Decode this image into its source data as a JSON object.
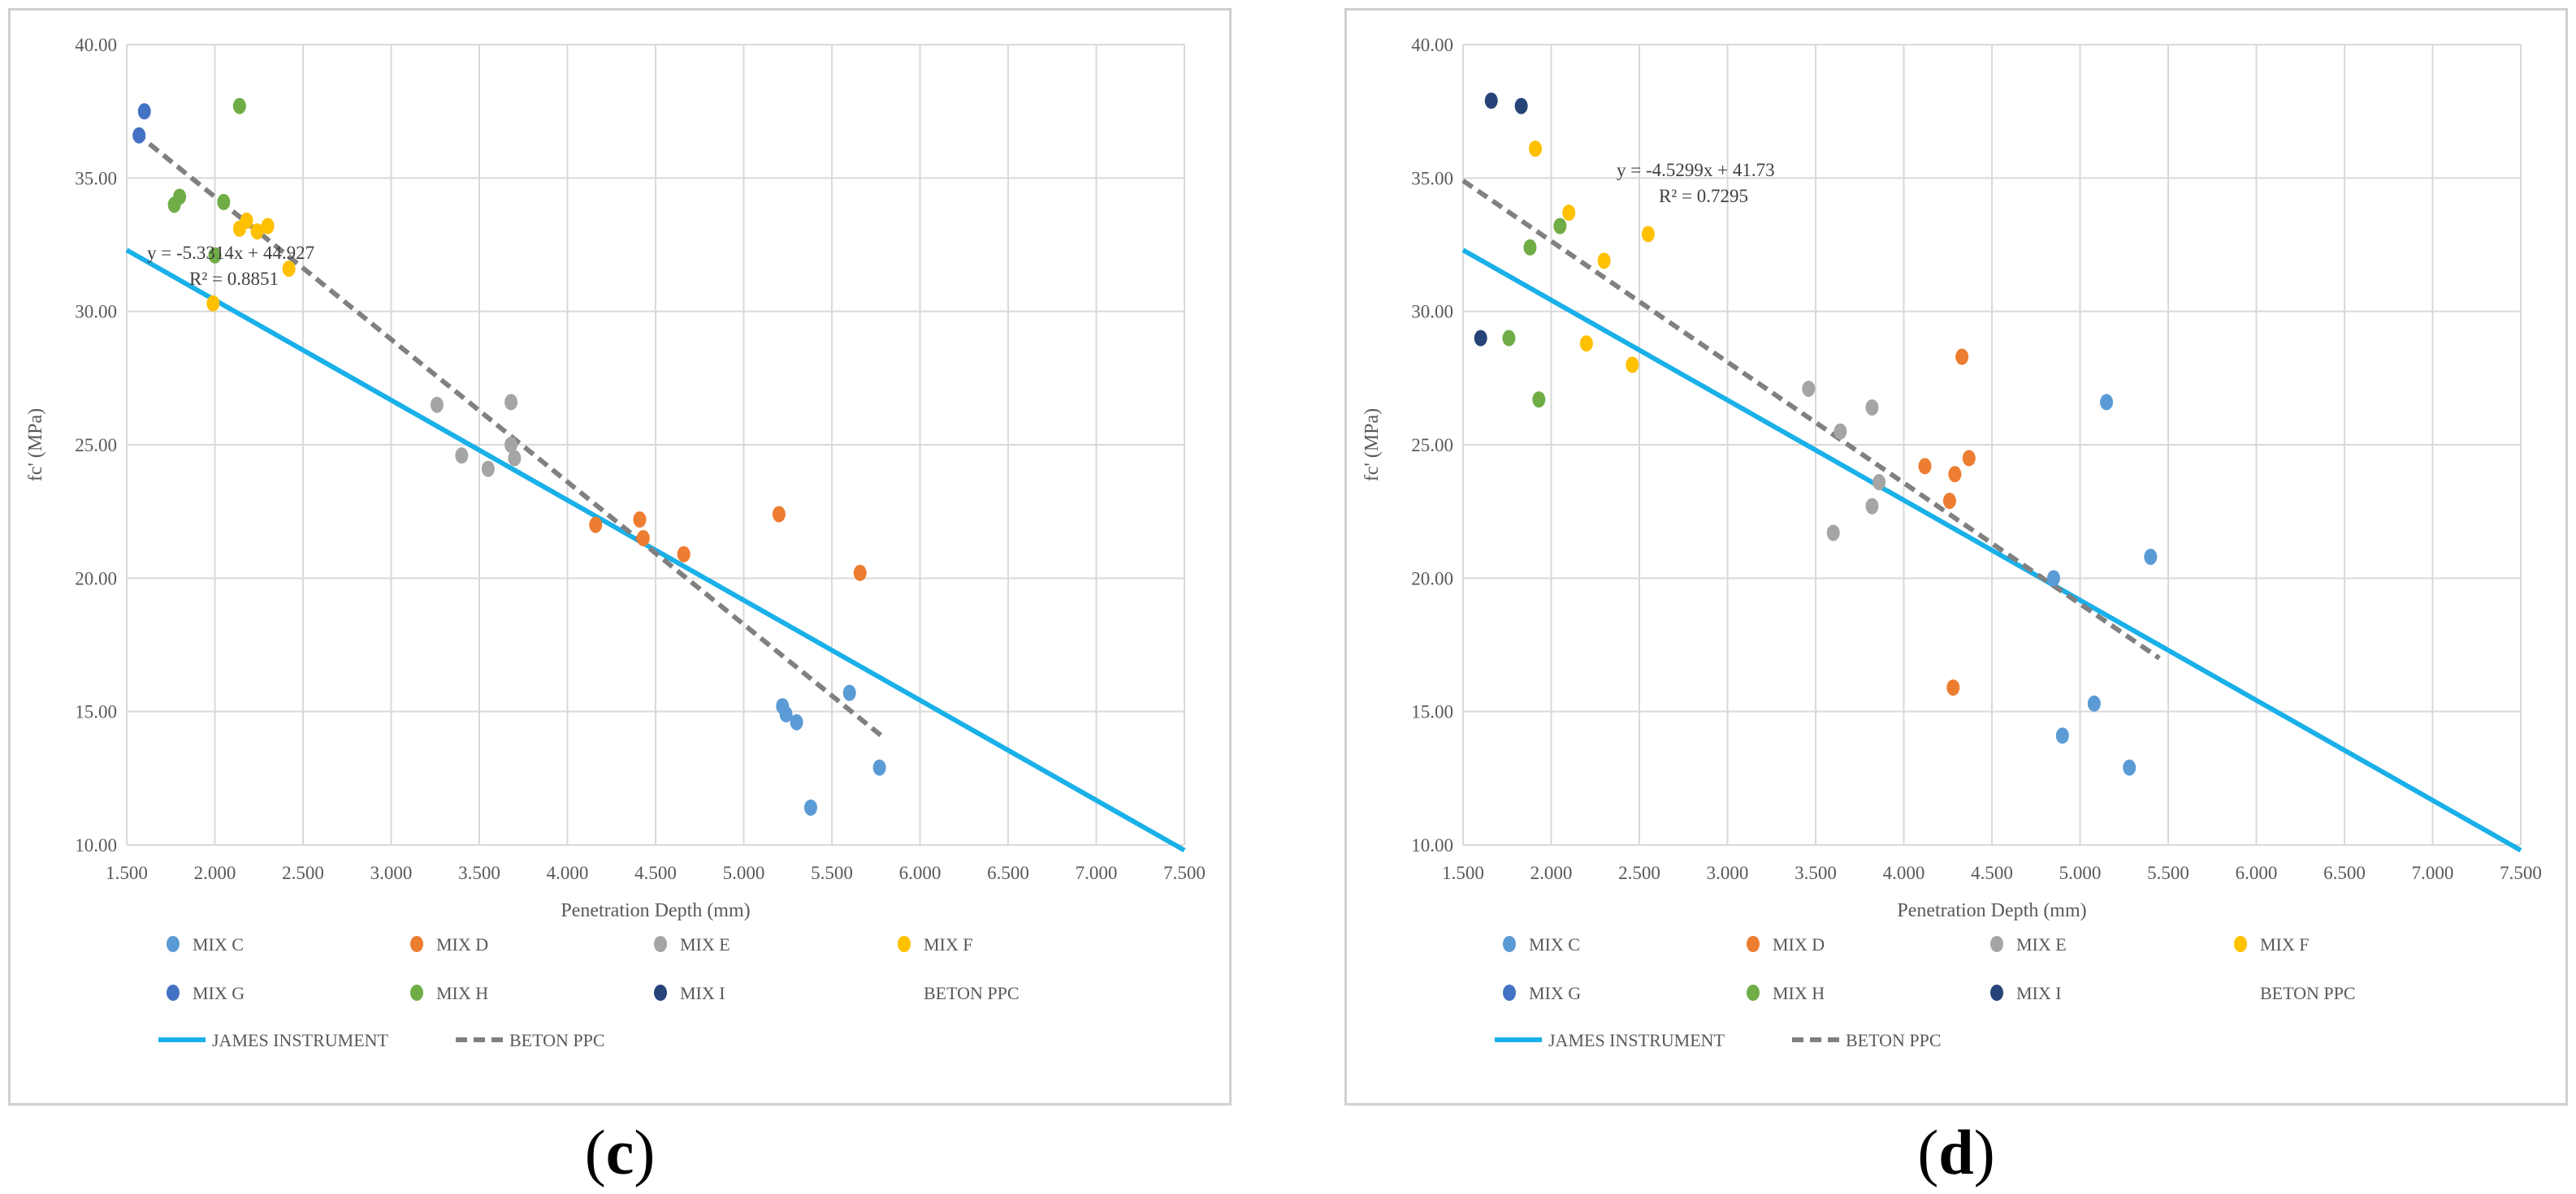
{
  "chart_data": [
    {
      "type": "scatter",
      "panel": "c",
      "caption_letter": "c",
      "xlabel": "Penetration Depth (mm)",
      "ylabel": "fc' (MPa)",
      "xlim": [
        1.5,
        7.5
      ],
      "ylim": [
        10,
        40
      ],
      "x_ticks": [
        "1.500",
        "2.000",
        "2.500",
        "3.000",
        "3.500",
        "4.000",
        "4.500",
        "5.000",
        "5.500",
        "6.000",
        "6.500",
        "7.000",
        "7.500"
      ],
      "y_ticks": [
        "10.00",
        "15.00",
        "20.00",
        "25.00",
        "30.00",
        "35.00",
        "40.00"
      ],
      "grid": true,
      "legend_position": "bottom",
      "equation": "y = -5.3314x + 44.927",
      "r_squared": "R² = 0.8851",
      "series": [
        {
          "name": "MIX C",
          "color": "#5b9bd5",
          "points": [
            [
              5.22,
              15.2
            ],
            [
              5.24,
              14.9
            ],
            [
              5.3,
              14.6
            ],
            [
              5.6,
              15.7
            ],
            [
              5.38,
              11.4
            ],
            [
              5.77,
              12.9
            ]
          ]
        },
        {
          "name": "MIX D",
          "color": "#ed7d31",
          "points": [
            [
              4.16,
              22.0
            ],
            [
              4.41,
              22.2
            ],
            [
              4.43,
              21.5
            ],
            [
              4.66,
              20.9
            ],
            [
              5.2,
              22.4
            ],
            [
              5.66,
              20.2
            ]
          ]
        },
        {
          "name": "MIX E",
          "color": "#a5a5a5",
          "points": [
            [
              3.26,
              26.5
            ],
            [
              3.4,
              24.6
            ],
            [
              3.55,
              24.1
            ],
            [
              3.68,
              26.6
            ],
            [
              3.68,
              25.0
            ],
            [
              3.7,
              24.5
            ]
          ]
        },
        {
          "name": "MIX F",
          "color": "#ffc000",
          "points": [
            [
              1.99,
              30.3
            ],
            [
              2.14,
              33.1
            ],
            [
              2.18,
              33.4
            ],
            [
              2.24,
              33.0
            ],
            [
              2.3,
              33.2
            ],
            [
              2.42,
              31.6
            ]
          ]
        },
        {
          "name": "MIX G",
          "color": "#4472c4",
          "points": [
            [
              1.57,
              36.6
            ],
            [
              1.6,
              37.5
            ]
          ]
        },
        {
          "name": "MIX H",
          "color": "#70ad47",
          "points": [
            [
              1.77,
              34.0
            ],
            [
              1.8,
              34.3
            ],
            [
              2.0,
              32.1
            ],
            [
              2.05,
              34.1
            ],
            [
              2.14,
              37.7
            ]
          ]
        },
        {
          "name": "MIX I",
          "color": "#264478",
          "points": []
        },
        {
          "name": "BETON PPC",
          "color": "#ffffff",
          "points": []
        }
      ],
      "lines": [
        {
          "name": "JAMES INSTRUMENT",
          "color": "#1ab0e8",
          "style": "solid",
          "from": [
            1.5,
            32.3
          ],
          "to": [
            7.5,
            9.8
          ]
        },
        {
          "name": "BETON PPC",
          "color": "#808080",
          "style": "dashed",
          "from": [
            1.55,
            36.7
          ],
          "to": [
            5.78,
            14.1
          ]
        }
      ]
    },
    {
      "type": "scatter",
      "panel": "d",
      "caption_letter": "d",
      "xlabel": "Penetration Depth (mm)",
      "ylabel": "fc' (MPa)",
      "xlim": [
        1.5,
        7.5
      ],
      "ylim": [
        10,
        40
      ],
      "x_ticks": [
        "1.500",
        "2.000",
        "2.500",
        "3.000",
        "3.500",
        "4.000",
        "4.500",
        "5.000",
        "5.500",
        "6.000",
        "6.500",
        "7.000",
        "7.500"
      ],
      "y_ticks": [
        "10.00",
        "15.00",
        "20.00",
        "25.00",
        "30.00",
        "35.00",
        "40.00"
      ],
      "grid": true,
      "legend_position": "bottom",
      "equation": "y = -4.5299x + 41.73",
      "r_squared": "R² = 0.7295",
      "series": [
        {
          "name": "MIX C",
          "color": "#5b9bd5",
          "points": [
            [
              5.15,
              26.6
            ],
            [
              5.4,
              20.8
            ],
            [
              4.85,
              20.0
            ],
            [
              4.9,
              14.1
            ],
            [
              5.08,
              15.3
            ],
            [
              5.28,
              12.9
            ]
          ]
        },
        {
          "name": "MIX D",
          "color": "#ed7d31",
          "points": [
            [
              4.12,
              24.2
            ],
            [
              4.26,
              22.9
            ],
            [
              4.29,
              23.9
            ],
            [
              4.33,
              28.3
            ],
            [
              4.37,
              24.5
            ],
            [
              4.28,
              15.9
            ]
          ]
        },
        {
          "name": "MIX E",
          "color": "#a5a5a5",
          "points": [
            [
              3.46,
              27.1
            ],
            [
              3.6,
              21.7
            ],
            [
              3.64,
              25.5
            ],
            [
              3.82,
              26.4
            ],
            [
              3.82,
              22.7
            ],
            [
              3.86,
              23.6
            ]
          ]
        },
        {
          "name": "MIX F",
          "color": "#ffc000",
          "points": [
            [
              1.91,
              36.1
            ],
            [
              2.1,
              33.7
            ],
            [
              2.2,
              28.8
            ],
            [
              2.3,
              31.9
            ],
            [
              2.46,
              28.0
            ],
            [
              2.55,
              32.9
            ]
          ]
        },
        {
          "name": "MIX G",
          "color": "#4472c4",
          "points": []
        },
        {
          "name": "MIX H",
          "color": "#70ad47",
          "points": [
            [
              1.76,
              29.0
            ],
            [
              1.88,
              32.4
            ],
            [
              1.93,
              26.7
            ],
            [
              2.05,
              33.2
            ]
          ]
        },
        {
          "name": "MIX I",
          "color": "#264478",
          "points": [
            [
              1.6,
              29.0
            ],
            [
              1.66,
              37.9
            ],
            [
              1.83,
              37.7
            ]
          ]
        },
        {
          "name": "BETON PPC",
          "color": "#ffffff",
          "points": []
        }
      ],
      "lines": [
        {
          "name": "JAMES INSTRUMENT",
          "color": "#1ab0e8",
          "style": "solid",
          "from": [
            1.5,
            32.3
          ],
          "to": [
            7.5,
            9.8
          ]
        },
        {
          "name": "BETON PPC",
          "color": "#808080",
          "style": "dashed",
          "from": [
            1.5,
            34.9
          ],
          "to": [
            5.45,
            17.0
          ]
        }
      ]
    }
  ]
}
